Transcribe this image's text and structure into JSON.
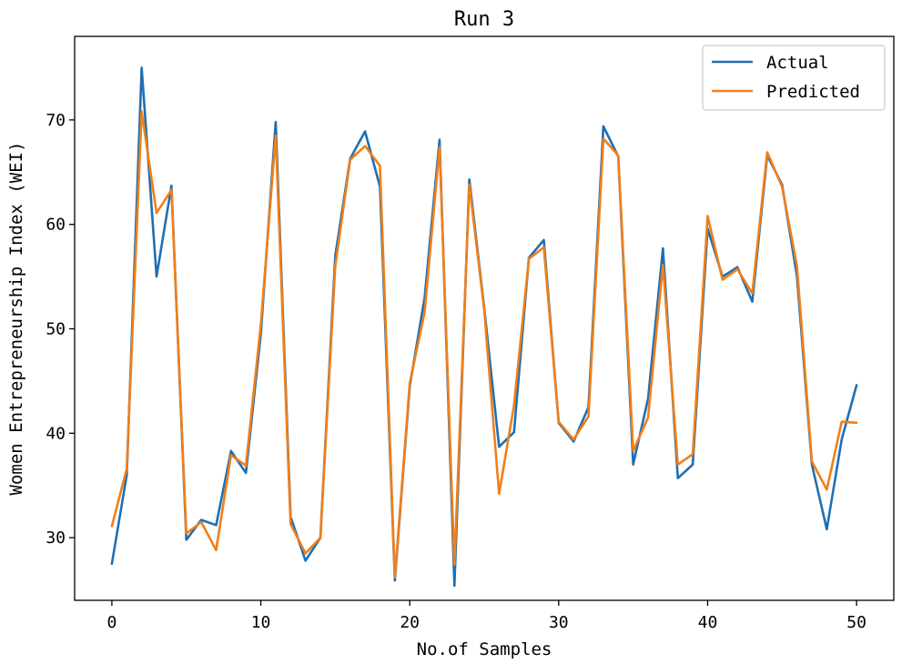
{
  "chart_data": {
    "type": "line",
    "title": "Run 3",
    "xlabel": "No.of Samples",
    "ylabel": "Women Entrepreneurship Index (WEI)",
    "xlim": [
      -2.5,
      52.5
    ],
    "ylim": [
      24.0,
      78.0
    ],
    "xticks": [
      0,
      10,
      20,
      30,
      40,
      50
    ],
    "yticks": [
      30,
      40,
      50,
      60,
      70
    ],
    "grid": false,
    "legend_position": "top-right",
    "x": [
      0,
      1,
      2,
      3,
      4,
      5,
      6,
      7,
      8,
      9,
      10,
      11,
      12,
      13,
      14,
      15,
      16,
      17,
      18,
      19,
      20,
      21,
      22,
      23,
      24,
      25,
      26,
      27,
      28,
      29,
      30,
      31,
      32,
      33,
      34,
      35,
      36,
      37,
      38,
      39,
      40,
      41,
      42,
      43,
      44,
      45,
      46,
      47,
      48,
      49,
      50
    ],
    "series": [
      {
        "name": "Actual",
        "color": "#1f6fb2",
        "values": [
          27.5,
          36.0,
          75.0,
          55.0,
          63.7,
          29.8,
          31.7,
          31.2,
          38.3,
          36.2,
          49.5,
          69.8,
          32.0,
          27.8,
          30.0,
          57.0,
          66.3,
          68.9,
          63.6,
          25.9,
          44.5,
          53.0,
          68.1,
          25.4,
          64.3,
          52.0,
          38.7,
          40.1,
          56.8,
          58.5,
          41.0,
          39.2,
          42.5,
          69.4,
          66.5,
          37.0,
          43.3,
          57.7,
          35.7,
          37.0,
          59.6,
          55.0,
          55.9,
          52.6,
          66.6,
          63.8,
          55.0,
          37.0,
          30.8,
          39.4,
          44.6
        ]
      },
      {
        "name": "Predicted",
        "color": "#f07f1a",
        "values": [
          31.1,
          36.6,
          70.8,
          61.1,
          63.3,
          30.4,
          31.5,
          28.8,
          37.9,
          36.9,
          50.4,
          68.5,
          31.3,
          28.5,
          30.0,
          56.0,
          66.2,
          67.5,
          65.6,
          26.2,
          44.8,
          51.6,
          67.4,
          27.4,
          63.8,
          51.8,
          34.2,
          42.7,
          56.7,
          57.8,
          41.1,
          39.4,
          41.6,
          68.2,
          66.6,
          38.3,
          41.5,
          56.1,
          37.0,
          38.0,
          60.8,
          54.7,
          55.7,
          53.4,
          66.9,
          63.6,
          56.0,
          37.3,
          34.6,
          41.1,
          41.0
        ]
      }
    ]
  }
}
